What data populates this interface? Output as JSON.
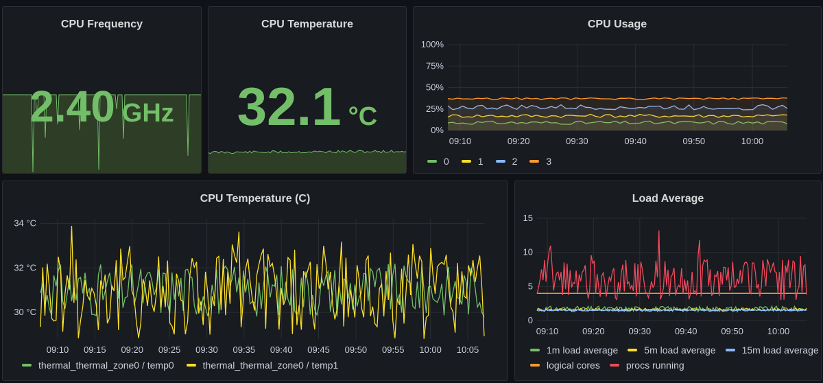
{
  "panels": {
    "cpu_frequency": {
      "title": "CPU Frequency",
      "value": "2.40",
      "unit": "GHz",
      "colors": {
        "text": "#73bf69",
        "fill": "#2e3d26"
      }
    },
    "cpu_temperature_stat": {
      "title": "CPU Temperature",
      "value": "32.1",
      "unit": "°C",
      "colors": {
        "text": "#73bf69",
        "fill": "#2e3d26"
      }
    },
    "cpu_usage": {
      "title": "CPU Usage",
      "legend": [
        {
          "label": "0",
          "color": "#73bf69"
        },
        {
          "label": "1",
          "color": "#f2cc0c"
        },
        {
          "label": "2",
          "color": "#8ab8ff"
        },
        {
          "label": "3",
          "color": "#ff780a"
        }
      ]
    },
    "cpu_temperature_graph": {
      "title": "CPU Temperature (C)",
      "legend": [
        {
          "label": "thermal_thermal_zone0 / temp0",
          "color": "#73bf69"
        },
        {
          "label": "thermal_thermal_zone0 / temp1",
          "color": "#fade2a"
        }
      ]
    },
    "load_average": {
      "title": "Load Average",
      "legend": [
        {
          "label": "1m load average",
          "color": "#73bf69"
        },
        {
          "label": "5m load average",
          "color": "#fade2a"
        },
        {
          "label": "15m load average",
          "color": "#8ab8ff"
        },
        {
          "label": "logical cores",
          "color": "#ff9830"
        },
        {
          "label": "procs running",
          "color": "#f2495c"
        }
      ]
    }
  },
  "chart_data": [
    {
      "id": "cpu_usage",
      "type": "line",
      "title": "CPU Usage",
      "x_ticks": [
        "09:10",
        "09:20",
        "09:30",
        "09:40",
        "09:50",
        "10:00"
      ],
      "y_ticks": [
        "100%",
        "75%",
        "50%",
        "25%",
        "0%"
      ],
      "ylim": [
        0,
        100
      ],
      "series": [
        {
          "name": "0",
          "color": "#73bf69",
          "base": 9,
          "jitter": 2
        },
        {
          "name": "1",
          "color": "#fade2a",
          "base": 17,
          "jitter": 2
        },
        {
          "name": "2",
          "color": "#8ab8ff",
          "base": 27,
          "jitter": 3
        },
        {
          "name": "3",
          "color": "#ff9830",
          "base": 37,
          "jitter": 1
        }
      ]
    },
    {
      "id": "cpu_temperature_graph",
      "type": "line",
      "title": "CPU Temperature (C)",
      "x_ticks": [
        "09:10",
        "09:15",
        "09:20",
        "09:25",
        "09:30",
        "09:35",
        "09:40",
        "09:45",
        "09:50",
        "09:55",
        "10:00",
        "10:05"
      ],
      "y_ticks": [
        "34 °C",
        "32 °C",
        "30 °C"
      ],
      "ylim": [
        28.8,
        34.2
      ],
      "series": [
        {
          "name": "thermal_thermal_zone0 / temp0",
          "color": "#73bf69",
          "base": 31,
          "jitter": 1.2
        },
        {
          "name": "thermal_thermal_zone0 / temp1",
          "color": "#fade2a",
          "base": 31,
          "jitter": 2.2
        }
      ]
    },
    {
      "id": "load_average",
      "type": "line",
      "title": "Load Average",
      "x_ticks": [
        "09:10",
        "09:20",
        "09:30",
        "09:40",
        "09:50",
        "10:00"
      ],
      "y_ticks": [
        "15",
        "10",
        "5",
        "0"
      ],
      "ylim": [
        0,
        15
      ],
      "series": [
        {
          "name": "1m load average",
          "color": "#73bf69",
          "base": 1.7,
          "jitter": 0.4
        },
        {
          "name": "5m load average",
          "color": "#fade2a",
          "base": 1.6,
          "jitter": 0.2
        },
        {
          "name": "15m load average",
          "color": "#8ab8ff",
          "base": 1.5,
          "jitter": 0.1
        },
        {
          "name": "logical cores",
          "color": "#ff9830",
          "base": 4,
          "jitter": 0
        },
        {
          "name": "procs running",
          "color": "#f2495c",
          "base": 6,
          "jitter": 3
        }
      ]
    }
  ]
}
